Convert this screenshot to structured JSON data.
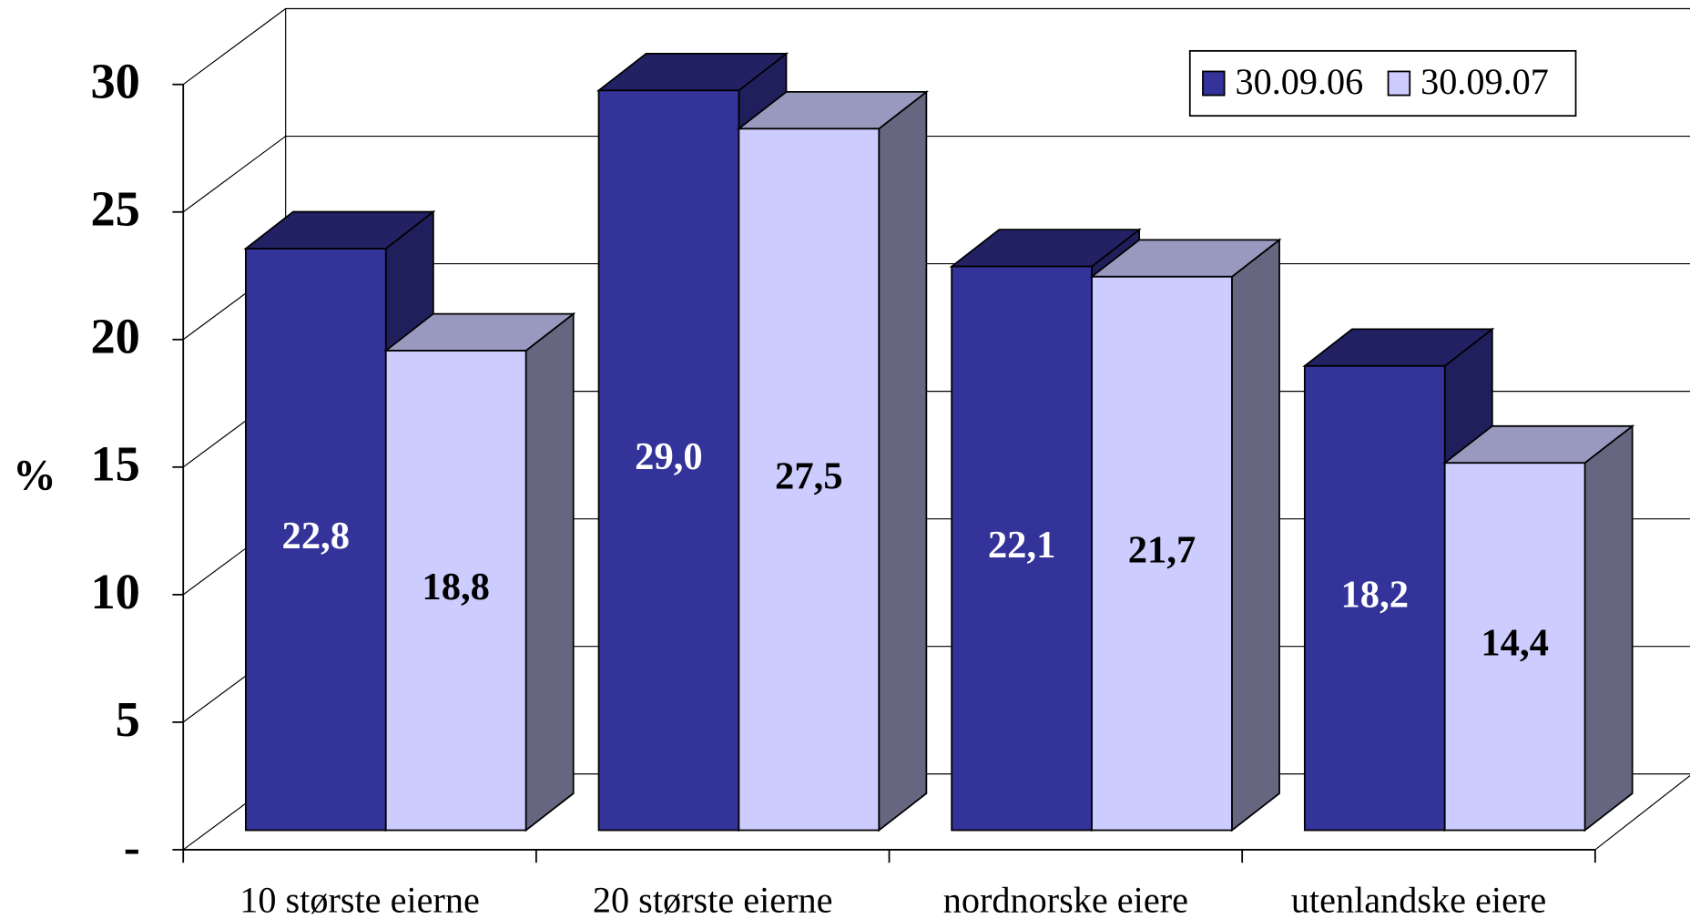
{
  "chart_data": {
    "type": "bar3d",
    "y_label": "%",
    "categories": [
      "10 største eierne",
      "20 største eierne",
      "nordnorske eiere",
      "utenlandske eiere"
    ],
    "series": [
      {
        "name": "30.09.06",
        "color": "#333399",
        "values": [
          22.8,
          29.0,
          22.1,
          18.2
        ],
        "value_labels": [
          "22,8",
          "29,0",
          "22,1",
          "18,2"
        ]
      },
      {
        "name": "30.09.07",
        "color": "#ccccff",
        "values": [
          18.8,
          27.5,
          21.7,
          14.4
        ],
        "value_labels": [
          "18,8",
          "27,5",
          "21,7",
          "14,4"
        ]
      }
    ],
    "ylim": [
      0,
      30
    ],
    "yticks": [
      {
        "value": 0,
        "label": "-"
      },
      5,
      10,
      15,
      20,
      25,
      30
    ],
    "grid": true,
    "legend": "top-right"
  }
}
